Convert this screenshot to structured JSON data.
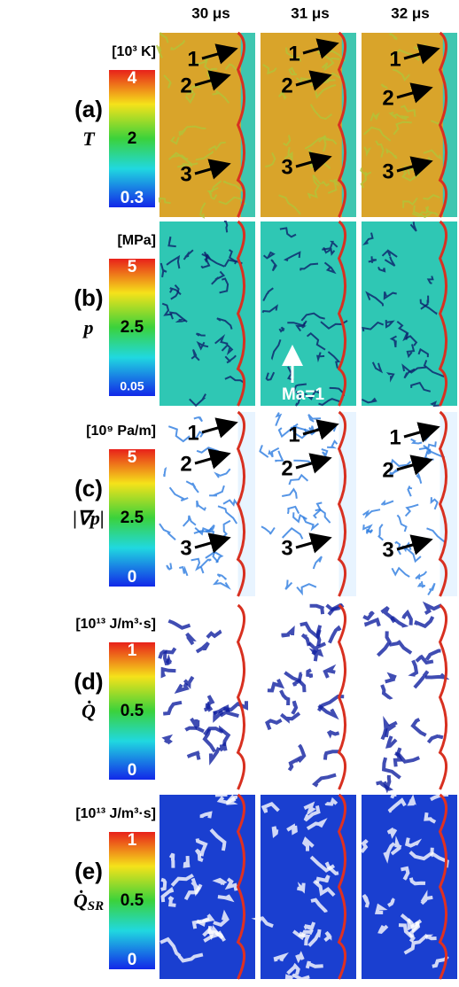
{
  "columns": [
    "30 μs",
    "31 μs",
    "32 μs"
  ],
  "rows": [
    {
      "units": "[10³ K]",
      "label": "(a)",
      "symbol": "T",
      "colorbar_ticks": [
        "4",
        "2",
        "0.3"
      ],
      "annotations": [
        [
          "1",
          "2",
          "3"
        ],
        [
          "1",
          "2",
          "3"
        ],
        [
          "1",
          "2",
          "3"
        ]
      ]
    },
    {
      "units": "[MPa]",
      "label": "(b)",
      "symbol": "p",
      "colorbar_ticks": [
        "5",
        "2.5",
        "0.05"
      ],
      "note": "Ma=1"
    },
    {
      "units": "[10⁹ Pa/m]",
      "label": "(c)",
      "symbol": "|∇p|",
      "colorbar_ticks": [
        "5",
        "2.5",
        "0"
      ],
      "annotations": [
        [
          "1",
          "2",
          "3"
        ],
        [
          "1",
          "2",
          "3"
        ],
        [
          "1",
          "2",
          "3"
        ]
      ]
    },
    {
      "units": "[10¹³ J/m³·s]",
      "label": "(d)",
      "symbol": "Q̇",
      "colorbar_ticks": [
        "1",
        "0.5",
        "0"
      ]
    },
    {
      "units": "[10¹³ J/m³·s]",
      "label": "(e)",
      "symbol": "Q̇",
      "symbol_sub": "SR",
      "colorbar_ticks": [
        "1",
        "0.5",
        "0"
      ]
    }
  ]
}
